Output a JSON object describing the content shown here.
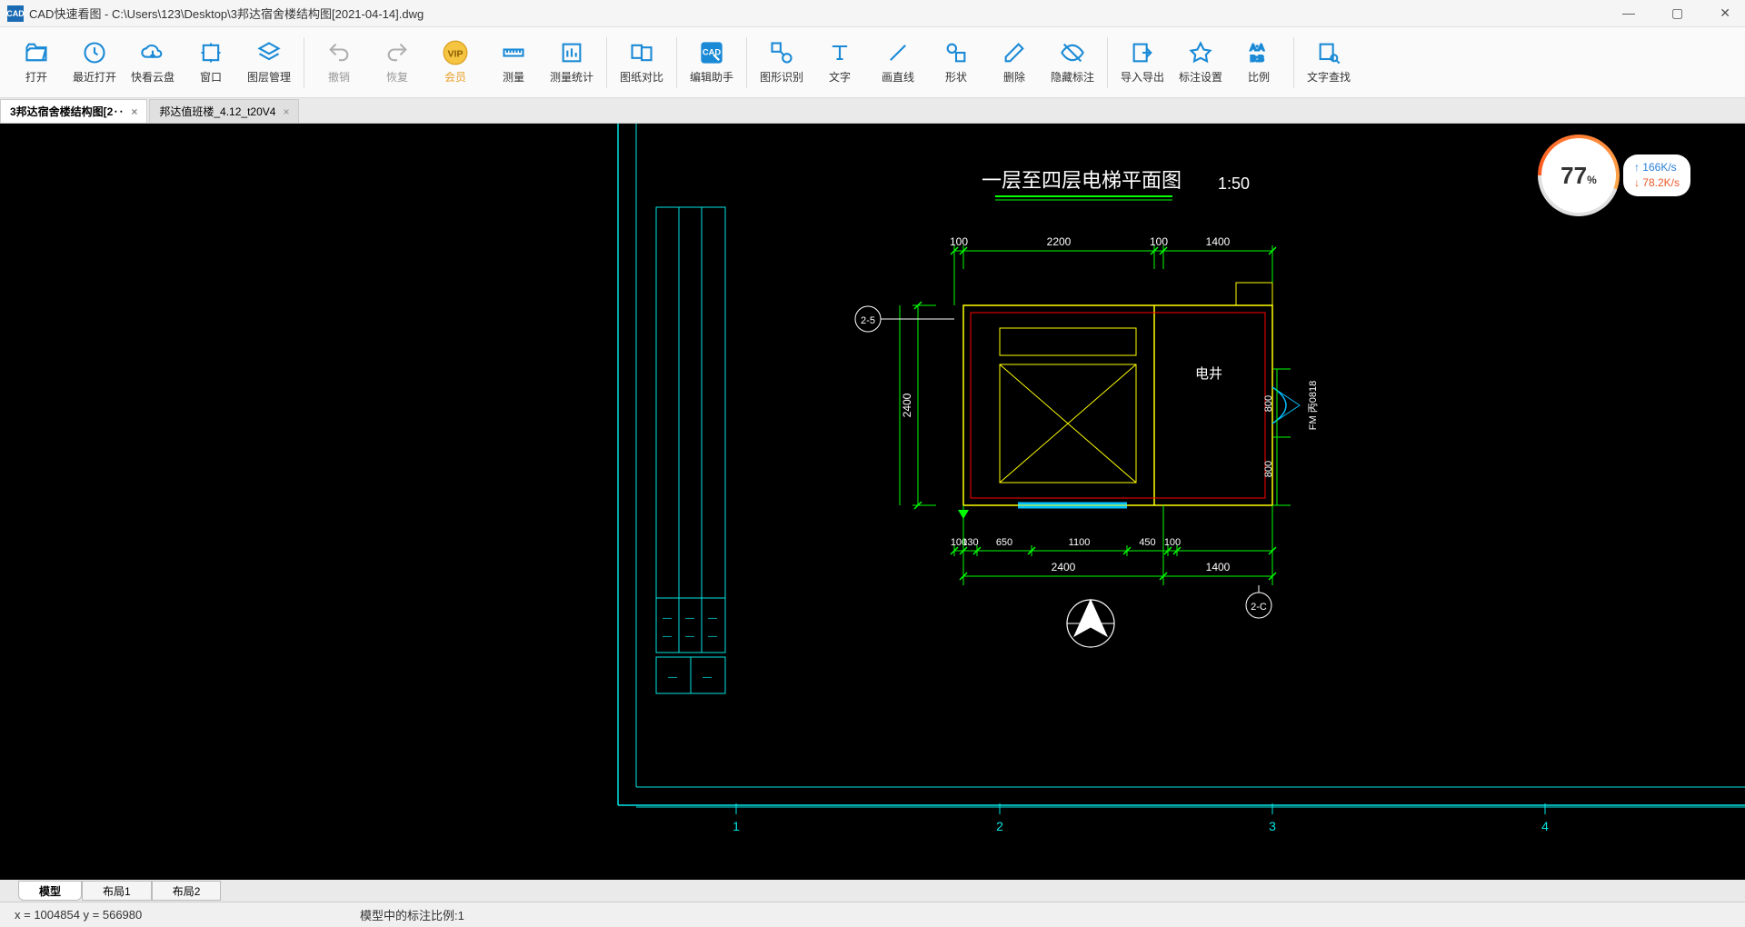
{
  "window": {
    "app_icon_text": "CAD",
    "title": "CAD快速看图 - C:\\Users\\123\\Desktop\\3邦达宿舍楼结构图[2021-04-14].dwg"
  },
  "toolbar": {
    "open": "打开",
    "recent": "最近打开",
    "cloud": "快看云盘",
    "window": "窗口",
    "layers": "图层管理",
    "undo": "撤销",
    "redo": "恢复",
    "vip": "会员",
    "measure": "测量",
    "measure_stat": "测量统计",
    "compare": "图纸对比",
    "edit_assist": "编辑助手",
    "shape_rec": "图形识别",
    "text": "文字",
    "line": "画直线",
    "shape": "形状",
    "delete": "删除",
    "hide_anno": "隐藏标注",
    "import_export": "导入导出",
    "anno_settings": "标注设置",
    "scale": "比例",
    "find_text": "文字查找"
  },
  "tabs": {
    "t1": "3邦达宿舍楼结构图[2‥",
    "t2": "邦达值班楼_4.12_t20V4"
  },
  "speed": {
    "pct": "77",
    "pct_unit": "%",
    "up": "166K/s",
    "down": "78.2K/s"
  },
  "bottom_tabs": {
    "model": "模型",
    "layout1": "布局1",
    "layout2": "布局2"
  },
  "status": {
    "coords": "x = 1004854  y = 566980",
    "scale": "模型中的标注比例:1"
  },
  "drawing": {
    "title": "一层至四层电梯平面图",
    "scale_label": "1:50",
    "top_dims": [
      "100",
      "2200",
      "100",
      "1400"
    ],
    "left_dim": "2400",
    "bottom_dims_upper": [
      "100",
      "130",
      "650",
      "1100",
      "450",
      "100"
    ],
    "bottom_dims_lower": [
      "2400",
      "1400"
    ],
    "right_dims": [
      "800",
      "800"
    ],
    "room_label": "电井",
    "door_tag": "FM 丙0818",
    "axis_left": "2-5",
    "axis_bottom": "2-C",
    "grid_axis_labels": [
      "1",
      "2",
      "3",
      "4"
    ],
    "colors": {
      "cyan": "#00e5e5",
      "green": "#00ff00",
      "yellow": "#ffff00",
      "red": "#ff0000",
      "sky": "#00bfff",
      "white": "#ffffff"
    }
  }
}
